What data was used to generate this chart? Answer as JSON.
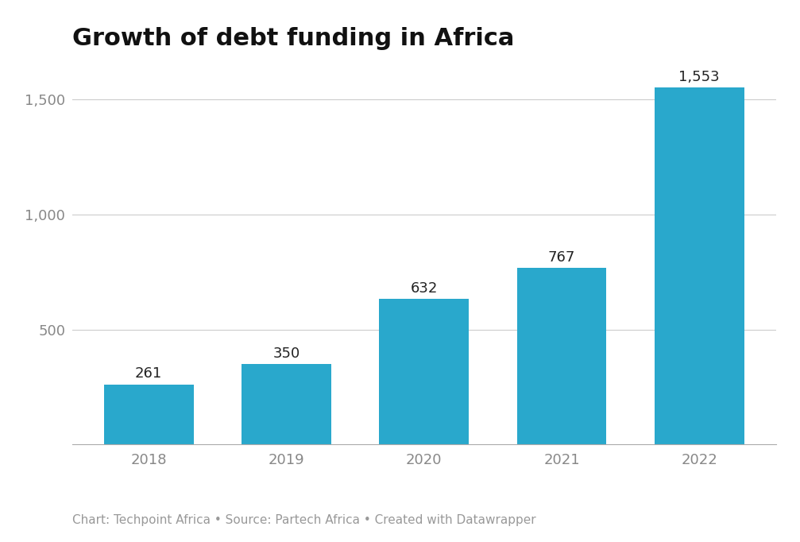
{
  "title": "Growth of debt funding in Africa",
  "categories": [
    "2018",
    "2019",
    "2020",
    "2021",
    "2022"
  ],
  "values": [
    261,
    350,
    632,
    767,
    1553
  ],
  "bar_color": "#29a8cc",
  "background_color": "#ffffff",
  "ylim": [
    0,
    1650
  ],
  "yticks": [
    500,
    1000,
    1500
  ],
  "ytick_labels": [
    "500",
    "1,000",
    "1,500"
  ],
  "title_fontsize": 22,
  "tick_fontsize": 13,
  "annotation_fontsize": 13,
  "footer": "Chart: Techpoint Africa • Source: Partech Africa • Created with Datawrapper",
  "footer_fontsize": 11,
  "bar_width": 0.65
}
